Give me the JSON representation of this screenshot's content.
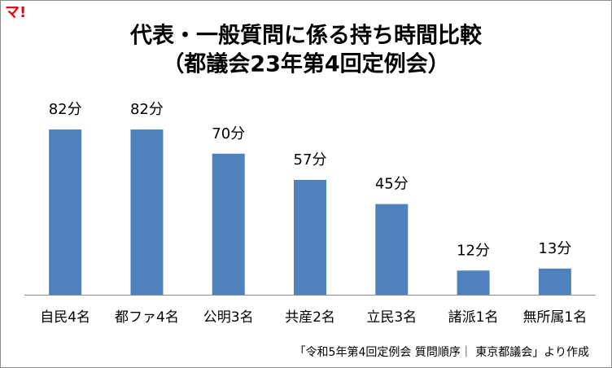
{
  "logo": "マ!",
  "chart_data": {
    "type": "bar",
    "title": "代表・一般質問に係る持ち時間比較",
    "subtitle": "（都議会23年第4回定例会）",
    "categories": [
      "自民4名",
      "都ファ4名",
      "公明3名",
      "共産2名",
      "立民3名",
      "諸派1名",
      "無所属1名"
    ],
    "values": [
      82,
      82,
      70,
      57,
      45,
      12,
      13
    ],
    "value_labels": [
      "82分",
      "82分",
      "70分",
      "57分",
      "45分",
      "12分",
      "13分"
    ],
    "color": "#4f81bd",
    "source": "「令和5年第4回定例会 質問順序｜ 東京都議会」より作成"
  }
}
